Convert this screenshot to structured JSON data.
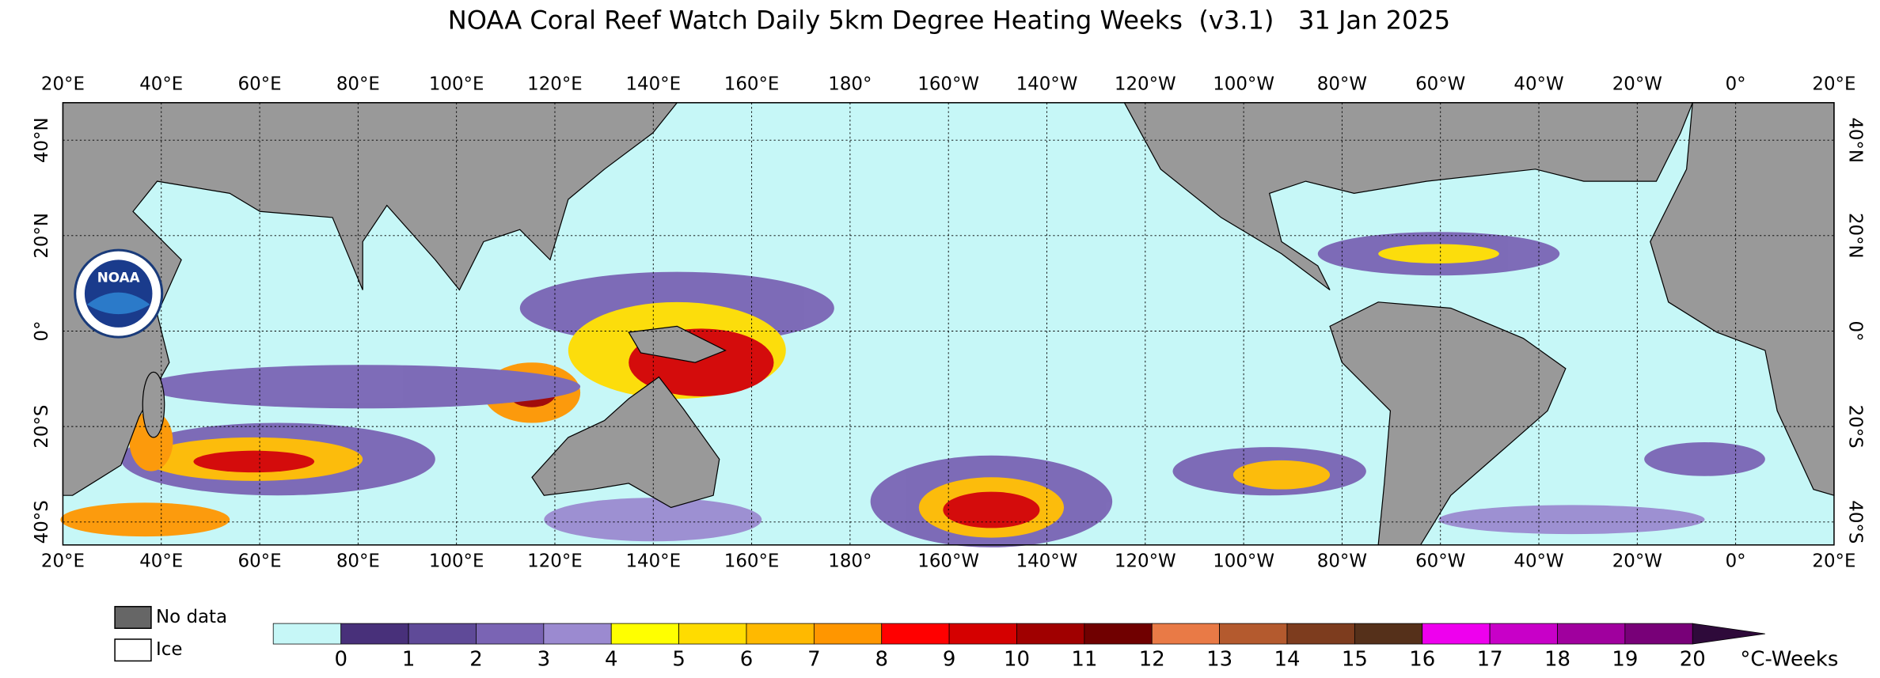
{
  "header": {
    "title": "NOAA Coral Reef Watch Daily 5km Degree Heating Weeks  (v3.1)   31 Jan 2025"
  },
  "map": {
    "longitude_labels": [
      "20°E",
      "40°E",
      "60°E",
      "80°E",
      "100°E",
      "120°E",
      "140°E",
      "160°E",
      "180°",
      "160°W",
      "140°W",
      "120°W",
      "100°W",
      "80°W",
      "60°W",
      "40°W",
      "20°W",
      "0°",
      "20°E"
    ],
    "latitude_labels": [
      "40°N",
      "20°N",
      "0°",
      "20°S",
      "40°S"
    ]
  },
  "logo": {
    "label": "NOAA"
  },
  "legend": {
    "items": [
      "No data",
      "Ice"
    ]
  },
  "colorbar": {
    "ticks": [
      0,
      1,
      2,
      3,
      4,
      5,
      6,
      7,
      8,
      9,
      10,
      11,
      12,
      13,
      14,
      15,
      16,
      17,
      18,
      19,
      20
    ],
    "unit": "°C-Weeks",
    "below_color": "#c6f7f7",
    "colors": [
      "#48307a",
      "#5f4a98",
      "#7a64b4",
      "#9b8ad0",
      "#ffff00",
      "#ffdc00",
      "#ffb900",
      "#ff9600",
      "#ff0000",
      "#d50000",
      "#a00000",
      "#700000",
      "#e97a46",
      "#b45a2e",
      "#7d3c1e",
      "#55301a",
      "#ee00ee",
      "#c800c8",
      "#a0009e",
      "#780078"
    ],
    "over_color": "#2e0a3a"
  }
}
